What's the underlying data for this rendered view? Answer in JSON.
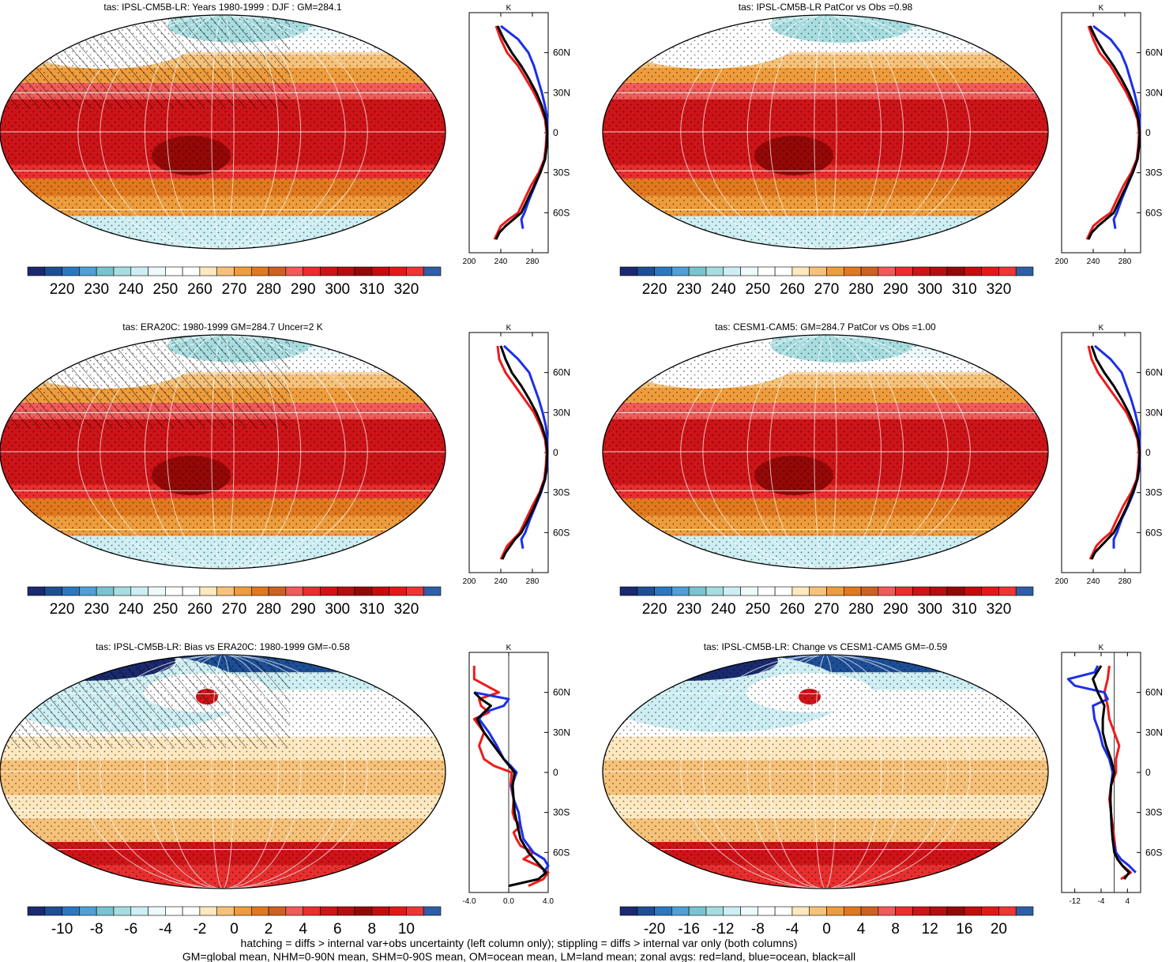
{
  "palette": [
    "#1a2a6e",
    "#1d4e96",
    "#2a78c0",
    "#4f9fd8",
    "#79c4cf",
    "#a8dde0",
    "#cdeef2",
    "#eef9fb",
    "#ffffff",
    "#ffffff",
    "#fde8c0",
    "#f6c27a",
    "#ee9c3c",
    "#e2781e",
    "#d06020",
    "#f25a5a",
    "#e82e2e",
    "#cd1418",
    "#b40e10",
    "#940808",
    "#c40c0c",
    "#de1a1a",
    "#ee3636",
    "#2e5ea6"
  ],
  "panels": [
    {
      "id": "p1",
      "title": "tas: IPSL-CM5B-LR: Years 1980-1999 : DJF : GM=284.1",
      "kind": "abs",
      "hatch": true,
      "stipple": true,
      "colorbar": [
        "220",
        "230",
        "240",
        "250",
        "260",
        "270",
        "280",
        "290",
        "300",
        "310",
        "320"
      ],
      "zonal": {
        "x_ticks": [
          "200",
          "240",
          "280"
        ],
        "xlim": [
          200,
          300
        ],
        "series": [
          {
            "name": "land",
            "color": "#ee1b1b",
            "lat": [
              -80,
              -75,
              -70,
              -65,
              -60,
              -50,
              -40,
              -30,
              -20,
              -10,
              0,
              10,
              20,
              30,
              40,
              50,
              60,
              70,
              80
            ],
            "vals": [
              232,
              236,
              240,
              250,
              262,
              270,
              278,
              288,
              295,
              297,
              298,
              296,
              290,
              282,
              272,
              262,
              248,
              240,
              234
            ]
          },
          {
            "name": "ocean",
            "color": "#1b2fe8",
            "lat": [
              -72,
              -65,
              -60,
              -50,
              -40,
              -30,
              -20,
              -10,
              0,
              10,
              20,
              30,
              40,
              50,
              60,
              70,
              80
            ],
            "vals": [
              268,
              266,
              270,
              276,
              283,
              290,
              296,
              298,
              299,
              299,
              296,
              292,
              287,
              282,
              275,
              262,
              240
            ]
          },
          {
            "name": "all",
            "color": "#000000",
            "lat": [
              -80,
              -75,
              -70,
              -65,
              -60,
              -50,
              -40,
              -30,
              -20,
              -10,
              0,
              10,
              20,
              30,
              40,
              50,
              60,
              70,
              80
            ],
            "vals": [
              234,
              238,
              246,
              256,
              266,
              274,
              282,
              290,
              296,
              298,
              299,
              297,
              292,
              285,
              276,
              266,
              254,
              244,
              236
            ]
          }
        ]
      }
    },
    {
      "id": "p2",
      "title": "tas: IPSL-CM5B-LR PatCor vs Obs =0.98",
      "kind": "abs",
      "hatch": false,
      "stipple": true,
      "colorbar": [
        "220",
        "230",
        "240",
        "250",
        "260",
        "270",
        "280",
        "290",
        "300",
        "310",
        "320"
      ],
      "zonal": {
        "x_ticks": [
          "200",
          "240",
          "280"
        ],
        "xlim": [
          200,
          300
        ],
        "series": [
          {
            "name": "land",
            "color": "#ee1b1b",
            "lat": [
              -80,
              -75,
              -70,
              -65,
              -60,
              -50,
              -40,
              -30,
              -20,
              -10,
              0,
              10,
              20,
              30,
              40,
              50,
              60,
              70,
              80
            ],
            "vals": [
              232,
              236,
              240,
              250,
              262,
              270,
              278,
              288,
              295,
              297,
              298,
              296,
              290,
              282,
              272,
              262,
              248,
              240,
              234
            ]
          },
          {
            "name": "ocean",
            "color": "#1b2fe8",
            "lat": [
              -72,
              -65,
              -60,
              -50,
              -40,
              -30,
              -20,
              -10,
              0,
              10,
              20,
              30,
              40,
              50,
              60,
              70,
              80
            ],
            "vals": [
              268,
              266,
              270,
              276,
              283,
              290,
              296,
              298,
              299,
              299,
              296,
              292,
              287,
              282,
              275,
              262,
              240
            ]
          },
          {
            "name": "all",
            "color": "#000000",
            "lat": [
              -80,
              -75,
              -70,
              -65,
              -60,
              -50,
              -40,
              -30,
              -20,
              -10,
              0,
              10,
              20,
              30,
              40,
              50,
              60,
              70,
              80
            ],
            "vals": [
              234,
              238,
              246,
              256,
              266,
              274,
              282,
              290,
              296,
              298,
              299,
              297,
              292,
              285,
              276,
              266,
              254,
              244,
              236
            ]
          }
        ]
      }
    },
    {
      "id": "p3",
      "title": "tas: ERA20C: 1980-1999 GM=284.7 Uncer=2 K",
      "kind": "abs",
      "hatch": true,
      "stipple": true,
      "colorbar": [
        "220",
        "230",
        "240",
        "250",
        "260",
        "270",
        "280",
        "290",
        "300",
        "310",
        "320"
      ],
      "zonal": {
        "x_ticks": [
          "200",
          "240",
          "280"
        ],
        "xlim": [
          200,
          300
        ],
        "series": [
          {
            "name": "land",
            "color": "#ee1b1b",
            "lat": [
              -80,
              -75,
              -70,
              -65,
              -60,
              -50,
              -40,
              -30,
              -20,
              -10,
              0,
              10,
              20,
              30,
              40,
              50,
              60,
              70,
              80
            ],
            "vals": [
              240,
              244,
              248,
              256,
              264,
              272,
              280,
              289,
              295,
              297,
              298,
              296,
              290,
              282,
              270,
              258,
              246,
              238,
              236
            ]
          },
          {
            "name": "ocean",
            "color": "#1b2fe8",
            "lat": [
              -72,
              -65,
              -60,
              -50,
              -40,
              -30,
              -20,
              -10,
              0,
              10,
              20,
              30,
              40,
              50,
              60,
              70,
              80
            ],
            "vals": [
              268,
              266,
              271,
              277,
              284,
              291,
              296,
              299,
              299,
              299,
              297,
              293,
              288,
              282,
              276,
              262,
              244
            ]
          },
          {
            "name": "all",
            "color": "#000000",
            "lat": [
              -80,
              -75,
              -70,
              -65,
              -60,
              -50,
              -40,
              -30,
              -20,
              -10,
              0,
              10,
              20,
              30,
              40,
              50,
              60,
              70,
              80
            ],
            "vals": [
              242,
              246,
              252,
              258,
              266,
              275,
              283,
              290,
              296,
              298,
              299,
              297,
              292,
              285,
              276,
              266,
              254,
              246,
              240
            ]
          }
        ]
      }
    },
    {
      "id": "p4",
      "title": "tas: CESM1-CAM5: GM=284.7 PatCor vs Obs =1.00",
      "kind": "abs",
      "hatch": false,
      "stipple": true,
      "colorbar": [
        "220",
        "230",
        "240",
        "250",
        "260",
        "270",
        "280",
        "290",
        "300",
        "310",
        "320"
      ],
      "zonal": {
        "x_ticks": [
          "200",
          "240",
          "280"
        ],
        "xlim": [
          200,
          300
        ],
        "series": [
          {
            "name": "land",
            "color": "#ee1b1b",
            "lat": [
              -80,
              -75,
              -70,
              -65,
              -60,
              -50,
              -40,
              -30,
              -20,
              -10,
              0,
              10,
              20,
              30,
              40,
              50,
              60,
              70,
              80
            ],
            "vals": [
              236,
              240,
              244,
              252,
              262,
              270,
              278,
              288,
              295,
              297,
              298,
              296,
              290,
              282,
              270,
              258,
              246,
              238,
              234
            ]
          },
          {
            "name": "ocean",
            "color": "#1b2fe8",
            "lat": [
              -72,
              -65,
              -60,
              -50,
              -40,
              -30,
              -20,
              -10,
              0,
              10,
              20,
              30,
              40,
              50,
              60,
              70,
              80
            ],
            "vals": [
              266,
              266,
              270,
              276,
              284,
              291,
              296,
              299,
              299,
              299,
              297,
              293,
              288,
              282,
              276,
              262,
              242
            ]
          },
          {
            "name": "all",
            "color": "#000000",
            "lat": [
              -80,
              -75,
              -70,
              -65,
              -60,
              -50,
              -40,
              -30,
              -20,
              -10,
              0,
              10,
              20,
              30,
              40,
              50,
              60,
              70,
              80
            ],
            "vals": [
              238,
              242,
              250,
              258,
              266,
              275,
              283,
              290,
              296,
              298,
              299,
              297,
              292,
              285,
              276,
              266,
              254,
              244,
              238
            ]
          }
        ]
      }
    },
    {
      "id": "p5",
      "title": "tas: IPSL-CM5B-LR: Bias vs ERA20C: 1980-1999 GM=-0.58",
      "kind": "bias",
      "hatch": true,
      "stipple": true,
      "colorbar": [
        "-10",
        "-8",
        "-6",
        "-4",
        "-2",
        "0",
        "2",
        "4",
        "6",
        "8",
        "10"
      ],
      "zonal": {
        "x_ticks": [
          "-4.0",
          "0.0",
          "4.0"
        ],
        "xlim": [
          -4,
          4
        ],
        "series": [
          {
            "name": "land",
            "color": "#ee1b1b",
            "lat": [
              -85,
              -80,
              -75,
              -70,
              -65,
              -60,
              -55,
              -50,
              -45,
              -40,
              -35,
              -30,
              -20,
              -10,
              0,
              5,
              10,
              20,
              30,
              40,
              45,
              50,
              55,
              60,
              70,
              80
            ],
            "vals": [
              2.0,
              3.5,
              4.0,
              3.0,
              1.5,
              2.5,
              1.2,
              0.8,
              0.5,
              1.2,
              0.6,
              0.4,
              0.5,
              0.2,
              0.3,
              -1.5,
              -2.5,
              -3.0,
              -2.5,
              -3.5,
              -2.0,
              -2.8,
              -3.0,
              -1.0,
              -3.5,
              -3.5
            ]
          },
          {
            "name": "ocean",
            "color": "#1b2fe8",
            "lat": [
              -75,
              -70,
              -65,
              -60,
              -50,
              -40,
              -30,
              -20,
              -10,
              0,
              5,
              10,
              20,
              30,
              40,
              45,
              50,
              55,
              60
            ],
            "vals": [
              3.5,
              4.0,
              3.6,
              2.5,
              1.5,
              1.2,
              1.0,
              0.5,
              0.3,
              0.8,
              0.2,
              -0.5,
              -1.2,
              -2.0,
              -3.0,
              -2.5,
              -0.5,
              0.0,
              -3.5
            ]
          },
          {
            "name": "all",
            "color": "#000000",
            "lat": [
              -85,
              -80,
              -75,
              -70,
              -65,
              -60,
              -50,
              -40,
              -30,
              -20,
              -10,
              0,
              10,
              20,
              30,
              40,
              45,
              50,
              55,
              60
            ],
            "vals": [
              0.0,
              3.0,
              3.8,
              3.2,
              2.6,
              2.0,
              1.2,
              0.9,
              0.6,
              0.5,
              0.4,
              0.6,
              -0.5,
              -1.5,
              -2.5,
              -3.2,
              -2.5,
              -1.8,
              -2.8,
              -3.5
            ]
          }
        ]
      }
    },
    {
      "id": "p6",
      "title": "tas: IPSL-CM5B-LR: Change vs CESM1-CAM5 GM=-0.59",
      "kind": "bias",
      "hatch": false,
      "stipple": true,
      "colorbar": [
        "-20",
        "-16",
        "-12",
        "-8",
        "-4",
        "0",
        "4",
        "8",
        "12",
        "16",
        "20"
      ],
      "zonal": {
        "x_ticks": [
          "-12",
          "-4",
          "4"
        ],
        "xlim": [
          -16,
          8
        ],
        "series": [
          {
            "name": "land",
            "color": "#ee1b1b",
            "lat": [
              -80,
              -75,
              -70,
              -65,
              -60,
              -50,
              -40,
              -30,
              -20,
              -10,
              0,
              10,
              20,
              30,
              40,
              50,
              60,
              70,
              80
            ],
            "vals": [
              2.0,
              5.0,
              2.5,
              1.0,
              0.5,
              0.0,
              -0.5,
              -1.0,
              -1.5,
              -1.0,
              0.5,
              0.5,
              1.5,
              0.0,
              -1.5,
              -2.0,
              -3.0,
              -2.0,
              -1.5
            ]
          },
          {
            "name": "ocean",
            "color": "#1b2fe8",
            "lat": [
              -75,
              -70,
              -65,
              -60,
              -50,
              -40,
              -30,
              -20,
              -10,
              0,
              10,
              20,
              30,
              40,
              50,
              55,
              60,
              65,
              70,
              75,
              80
            ],
            "vals": [
              6.5,
              4.5,
              2.0,
              0.5,
              -0.5,
              -0.8,
              -1.0,
              -1.2,
              -1.0,
              -0.5,
              -1.5,
              -3.5,
              -4.5,
              -6.0,
              -6.5,
              -2.0,
              -3.0,
              -12.0,
              -14.0,
              -6.0,
              -5.0
            ]
          },
          {
            "name": "all",
            "color": "#000000",
            "lat": [
              -80,
              -75,
              -70,
              -65,
              -60,
              -50,
              -40,
              -30,
              -20,
              -10,
              0,
              10,
              20,
              30,
              40,
              50,
              60,
              70,
              80
            ],
            "vals": [
              3.0,
              4.5,
              2.5,
              1.0,
              0.0,
              -0.5,
              -0.8,
              -1.0,
              -1.2,
              -1.0,
              0.0,
              -1.0,
              -2.5,
              -3.5,
              -3.5,
              -3.0,
              -5.0,
              -6.5,
              -4.0
            ]
          }
        ]
      }
    }
  ],
  "zonal_common": {
    "unit_label": "K",
    "lat_ticks": [
      "60N",
      "30N",
      "0",
      "30S",
      "60S"
    ]
  },
  "footer": {
    "line1": "hatching = diffs > internal var+obs uncertainty (left column only); stippling = diffs > internal var only (both columns)",
    "line2": "GM=global mean, NHM=0-90N mean, SHM=0-90S mean, OM=ocean mean, LM=land mean; zonal avgs: red=land, blue=ocean, black=all"
  }
}
